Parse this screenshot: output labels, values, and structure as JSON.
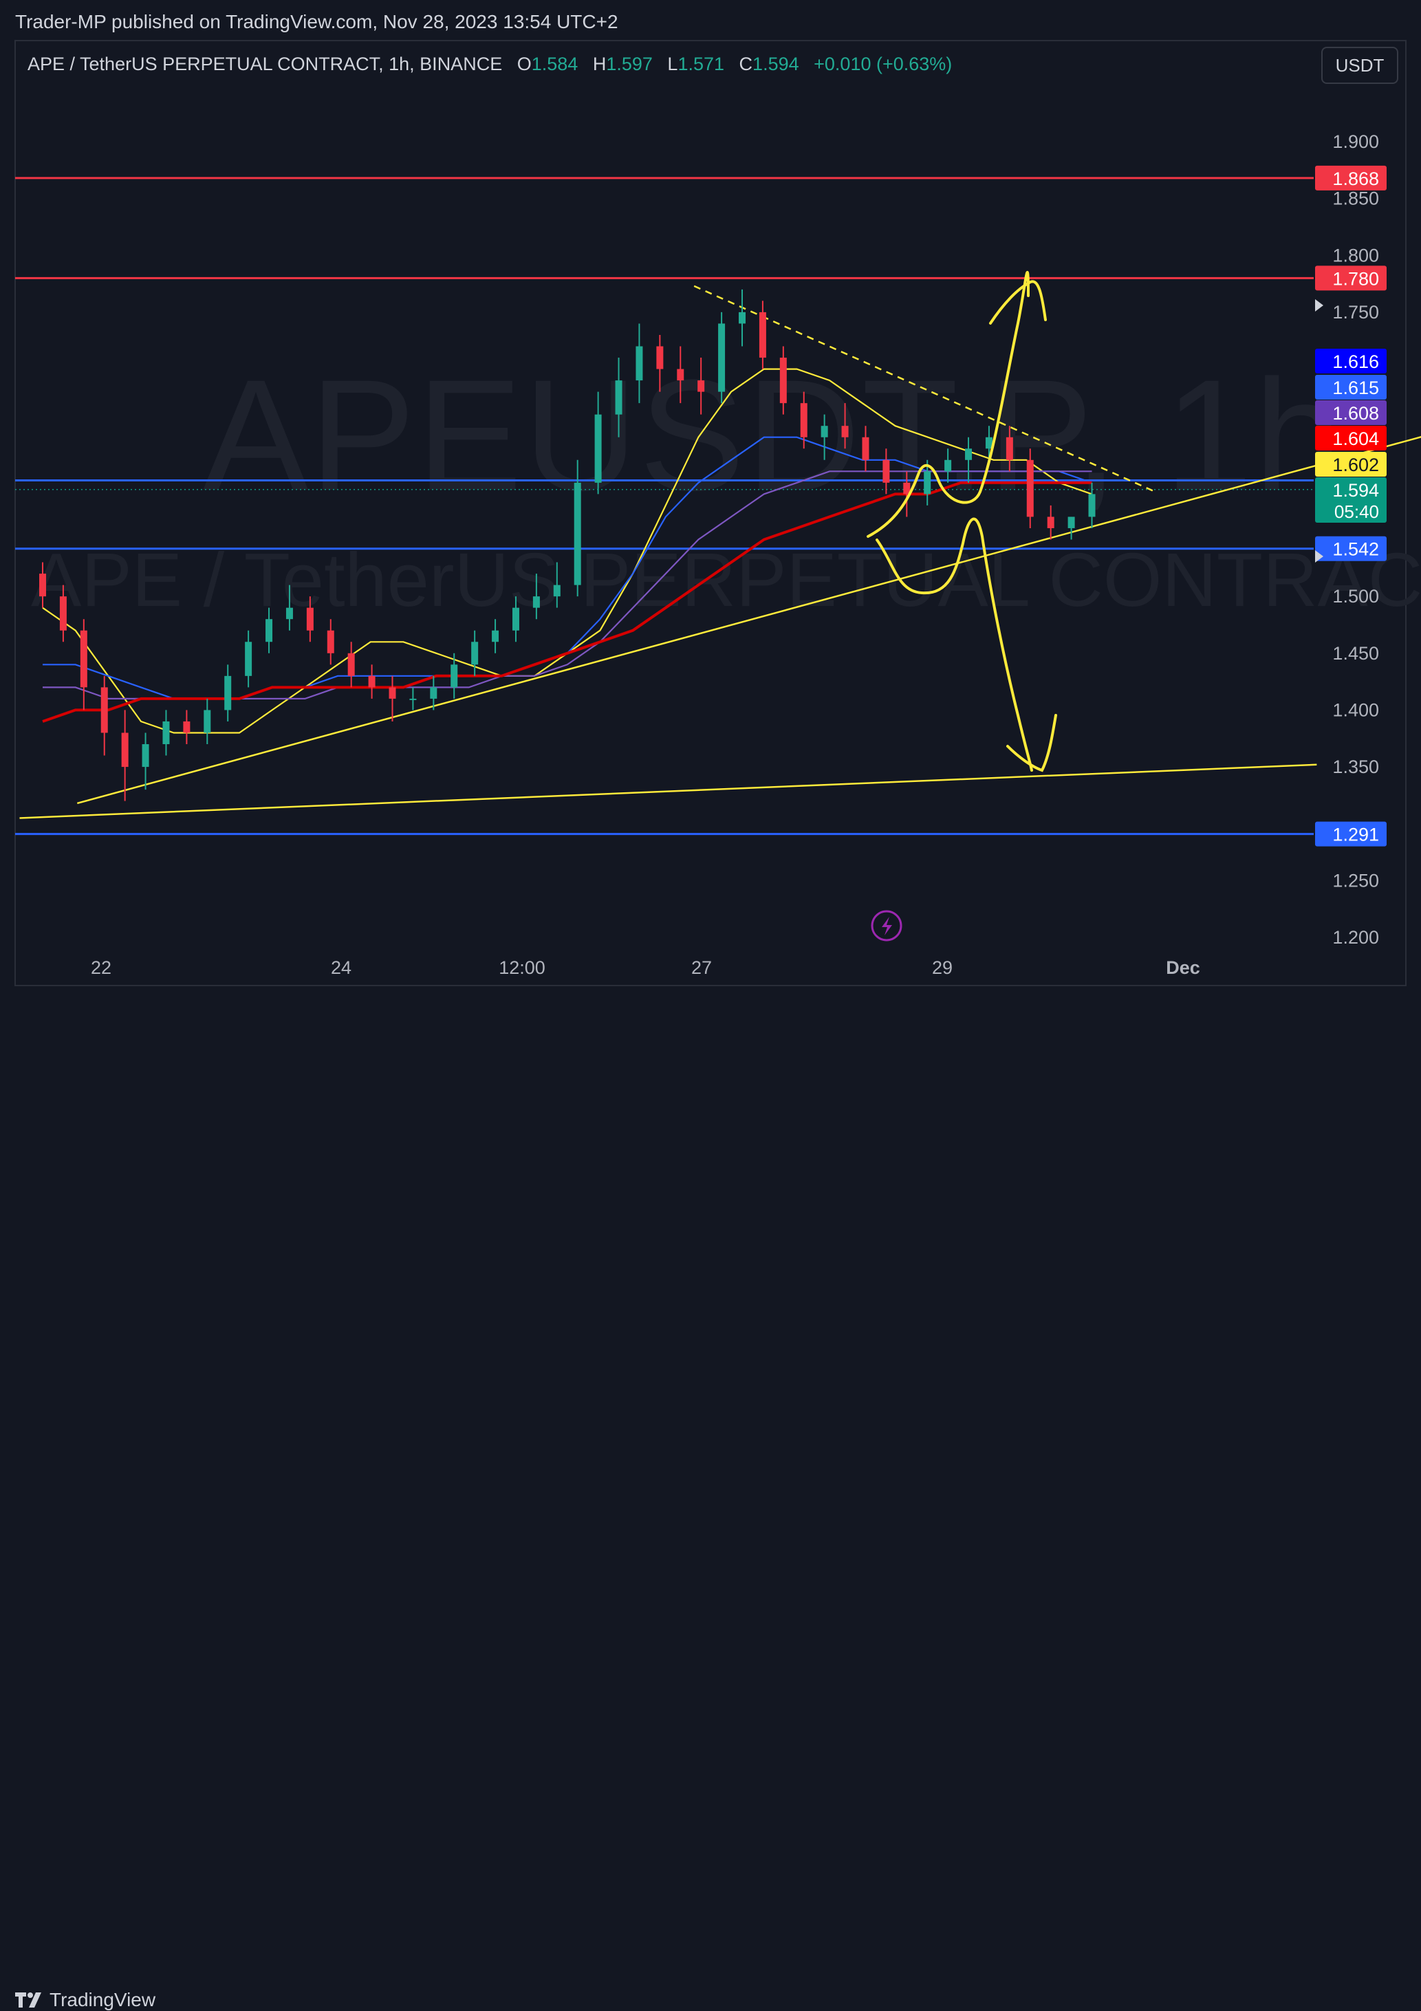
{
  "header": {
    "published_by": "Trader-MP published on TradingView.com, Nov 28, 2023 13:54 UTC+2"
  },
  "legend": {
    "symbol": "APE / TetherUS PERPETUAL CONTRACT, 1h, BINANCE",
    "open_label": "O",
    "open": "1.584",
    "high_label": "H",
    "high": "1.597",
    "low_label": "L",
    "low": "1.571",
    "close_label": "C",
    "close": "1.594",
    "change": "+0.010 (+0.63%)"
  },
  "currency_button": "USDT",
  "watermark": {
    "ticker": "APEUSDT.P, 1h",
    "description": "APE / TetherUS PERPETUAL CONTRACT"
  },
  "footer": {
    "brand": "TradingView"
  },
  "colors": {
    "background": "#131722",
    "up": "#22ab94",
    "down": "#f23645",
    "resistance": "#f23645",
    "support": "#2962ff",
    "drawing": "#ffeb3b",
    "ema_fast": "#ffeb3b",
    "ema_mid": "#2962ff",
    "ema_slow": "#7e57c2",
    "ema_long": "#d50000"
  },
  "chart_data": {
    "type": "candlestick",
    "timeframe": "1h",
    "x_ticks": [
      "22",
      "24",
      "12:00",
      "27",
      "29",
      "Dec"
    ],
    "y_ticks": [
      "1.200",
      "1.250",
      "1.350",
      "1.400",
      "1.450",
      "1.500",
      "1.750",
      "1.800",
      "1.850",
      "1.900"
    ],
    "ylim": [
      1.19,
      1.97
    ],
    "x_range_hours": [
      0,
      270
    ],
    "last_candle_hour": 182,
    "candles_ohlc_hourly_sampled": [
      [
        1.52,
        1.53,
        1.49,
        1.5
      ],
      [
        1.5,
        1.51,
        1.46,
        1.47
      ],
      [
        1.47,
        1.48,
        1.4,
        1.42
      ],
      [
        1.42,
        1.43,
        1.36,
        1.38
      ],
      [
        1.38,
        1.4,
        1.32,
        1.35
      ],
      [
        1.35,
        1.38,
        1.33,
        1.37
      ],
      [
        1.37,
        1.4,
        1.36,
        1.39
      ],
      [
        1.39,
        1.4,
        1.37,
        1.38
      ],
      [
        1.38,
        1.41,
        1.37,
        1.4
      ],
      [
        1.4,
        1.44,
        1.39,
        1.43
      ],
      [
        1.43,
        1.47,
        1.42,
        1.46
      ],
      [
        1.46,
        1.49,
        1.45,
        1.48
      ],
      [
        1.48,
        1.51,
        1.47,
        1.49
      ],
      [
        1.49,
        1.5,
        1.46,
        1.47
      ],
      [
        1.47,
        1.48,
        1.44,
        1.45
      ],
      [
        1.45,
        1.46,
        1.42,
        1.43
      ],
      [
        1.43,
        1.44,
        1.41,
        1.42
      ],
      [
        1.42,
        1.43,
        1.39,
        1.41
      ],
      [
        1.41,
        1.42,
        1.4,
        1.41
      ],
      [
        1.41,
        1.43,
        1.4,
        1.42
      ],
      [
        1.42,
        1.45,
        1.41,
        1.44
      ],
      [
        1.44,
        1.47,
        1.43,
        1.46
      ],
      [
        1.46,
        1.48,
        1.45,
        1.47
      ],
      [
        1.47,
        1.5,
        1.46,
        1.49
      ],
      [
        1.49,
        1.52,
        1.48,
        1.5
      ],
      [
        1.5,
        1.53,
        1.49,
        1.51
      ],
      [
        1.51,
        1.62,
        1.5,
        1.6
      ],
      [
        1.6,
        1.68,
        1.59,
        1.66
      ],
      [
        1.66,
        1.71,
        1.64,
        1.69
      ],
      [
        1.69,
        1.74,
        1.67,
        1.72
      ],
      [
        1.72,
        1.73,
        1.68,
        1.7
      ],
      [
        1.7,
        1.72,
        1.67,
        1.69
      ],
      [
        1.69,
        1.71,
        1.66,
        1.68
      ],
      [
        1.68,
        1.75,
        1.67,
        1.74
      ],
      [
        1.74,
        1.77,
        1.72,
        1.75
      ],
      [
        1.75,
        1.76,
        1.7,
        1.71
      ],
      [
        1.71,
        1.72,
        1.66,
        1.67
      ],
      [
        1.67,
        1.68,
        1.63,
        1.64
      ],
      [
        1.64,
        1.66,
        1.62,
        1.65
      ],
      [
        1.65,
        1.67,
        1.63,
        1.64
      ],
      [
        1.64,
        1.65,
        1.61,
        1.62
      ],
      [
        1.62,
        1.63,
        1.59,
        1.6
      ],
      [
        1.6,
        1.61,
        1.57,
        1.59
      ],
      [
        1.59,
        1.62,
        1.58,
        1.61
      ],
      [
        1.61,
        1.63,
        1.6,
        1.62
      ],
      [
        1.62,
        1.64,
        1.6,
        1.63
      ],
      [
        1.63,
        1.65,
        1.62,
        1.64
      ],
      [
        1.64,
        1.65,
        1.61,
        1.62
      ],
      [
        1.62,
        1.63,
        1.56,
        1.57
      ],
      [
        1.57,
        1.58,
        1.55,
        1.56
      ],
      [
        1.56,
        1.57,
        1.55,
        1.57
      ],
      [
        1.57,
        1.6,
        1.56,
        1.59
      ]
    ],
    "moving_averages": [
      {
        "color": "#ffeb3b",
        "values": [
          1.49,
          1.47,
          1.43,
          1.39,
          1.38,
          1.38,
          1.38,
          1.4,
          1.42,
          1.44,
          1.46,
          1.46,
          1.45,
          1.44,
          1.43,
          1.43,
          1.45,
          1.47,
          1.52,
          1.58,
          1.64,
          1.68,
          1.7,
          1.7,
          1.69,
          1.67,
          1.65,
          1.64,
          1.63,
          1.62,
          1.62,
          1.6,
          1.59
        ]
      },
      {
        "color": "#2962ff",
        "values": [
          1.44,
          1.44,
          1.43,
          1.42,
          1.41,
          1.41,
          1.41,
          1.42,
          1.42,
          1.43,
          1.43,
          1.43,
          1.43,
          1.43,
          1.43,
          1.44,
          1.45,
          1.48,
          1.52,
          1.57,
          1.6,
          1.62,
          1.64,
          1.64,
          1.63,
          1.62,
          1.62,
          1.61,
          1.61,
          1.61,
          1.61,
          1.61,
          1.6
        ]
      },
      {
        "color": "#7e57c2",
        "values": [
          1.42,
          1.42,
          1.41,
          1.41,
          1.41,
          1.41,
          1.41,
          1.41,
          1.41,
          1.42,
          1.42,
          1.42,
          1.42,
          1.42,
          1.43,
          1.43,
          1.44,
          1.46,
          1.49,
          1.52,
          1.55,
          1.57,
          1.59,
          1.6,
          1.61,
          1.61,
          1.61,
          1.61,
          1.61,
          1.61,
          1.61,
          1.61,
          1.61
        ]
      },
      {
        "color": "#d50000",
        "values": [
          1.39,
          1.4,
          1.4,
          1.41,
          1.41,
          1.41,
          1.41,
          1.42,
          1.42,
          1.42,
          1.42,
          1.42,
          1.43,
          1.43,
          1.43,
          1.44,
          1.45,
          1.46,
          1.47,
          1.49,
          1.51,
          1.53,
          1.55,
          1.56,
          1.57,
          1.58,
          1.59,
          1.59,
          1.6,
          1.6,
          1.6,
          1.6,
          1.6
        ]
      }
    ],
    "horizontal_levels": [
      {
        "price": 1.868,
        "label": "1.868",
        "color": "#f23645",
        "label_color": "#f23645"
      },
      {
        "price": 1.78,
        "label": "1.780",
        "color": "#f23645",
        "label_color": "#f23645"
      },
      {
        "price": 1.602,
        "label": "",
        "color": "#2962ff",
        "label_color": "#2962ff"
      },
      {
        "price": 1.542,
        "label": "1.542",
        "color": "#2962ff",
        "label_color": "#2962ff"
      },
      {
        "price": 1.291,
        "label": "1.291",
        "color": "#2962ff",
        "label_color": "#2962ff"
      }
    ],
    "price_labels": [
      {
        "price": 1.616,
        "label": "1.616",
        "bg": "#0000ff",
        "fg": "#ffffff"
      },
      {
        "price": 1.615,
        "label": "1.615",
        "bg": "#2962ff",
        "fg": "#ffffff"
      },
      {
        "price": 1.608,
        "label": "1.608",
        "bg": "#673ab7",
        "fg": "#ffffff"
      },
      {
        "price": 1.604,
        "label": "1.604",
        "bg": "#ff0000",
        "fg": "#ffffff"
      },
      {
        "price": 1.602,
        "label": "1.602",
        "bg": "#ffeb3b",
        "fg": "#131722"
      }
    ],
    "last_price": {
      "price": 1.594,
      "label": "1.594",
      "countdown": "05:40",
      "bg": "#089981"
    },
    "trendlines": [
      {
        "from": [
          -4,
          1.305
        ],
        "to": [
          221,
          1.352
        ],
        "style": "solid"
      },
      {
        "from": [
          6,
          1.318
        ],
        "to": [
          257,
          1.665
        ],
        "style": "solid"
      },
      {
        "from": [
          113,
          1.773
        ],
        "to": [
          193,
          1.592
        ],
        "style": "dashed"
      }
    ]
  }
}
